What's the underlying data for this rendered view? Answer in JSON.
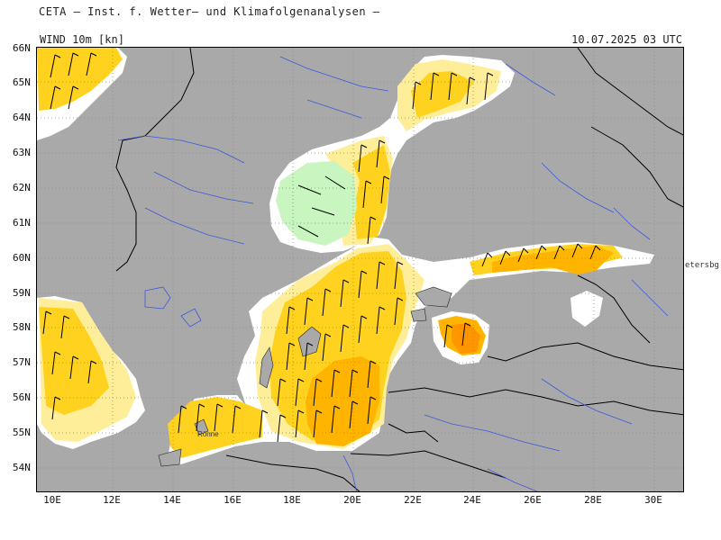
{
  "header": {
    "title": "CETA — Inst. f. Wetter— und Klimafolgenanalysen —"
  },
  "label_bar": {
    "variable": "WIND 10m [kn]",
    "datetime": "10.07.2025 03 UTC"
  },
  "axes": {
    "lat_labels": [
      "66N",
      "65N",
      "64N",
      "63N",
      "62N",
      "61N",
      "60N",
      "59N",
      "58N",
      "57N",
      "56N",
      "55N",
      "54N"
    ],
    "lon_labels": [
      "10E",
      "12E",
      "14E",
      "16E",
      "18E",
      "20E",
      "22E",
      "24E",
      "26E",
      "28E",
      "30E"
    ]
  },
  "places": {
    "bornholm": "Rönne",
    "petersburg": "etersbg"
  },
  "colors": {
    "land": "#a9a9a9",
    "calm_sea": "#ffffff",
    "light_yellow": "#ffee99",
    "yellow": "#ffd21f",
    "amber": "#ffb400",
    "orange": "#ff9600",
    "light_green": "#c8f5c0",
    "river": "#3c5adc",
    "border": "#000000"
  }
}
